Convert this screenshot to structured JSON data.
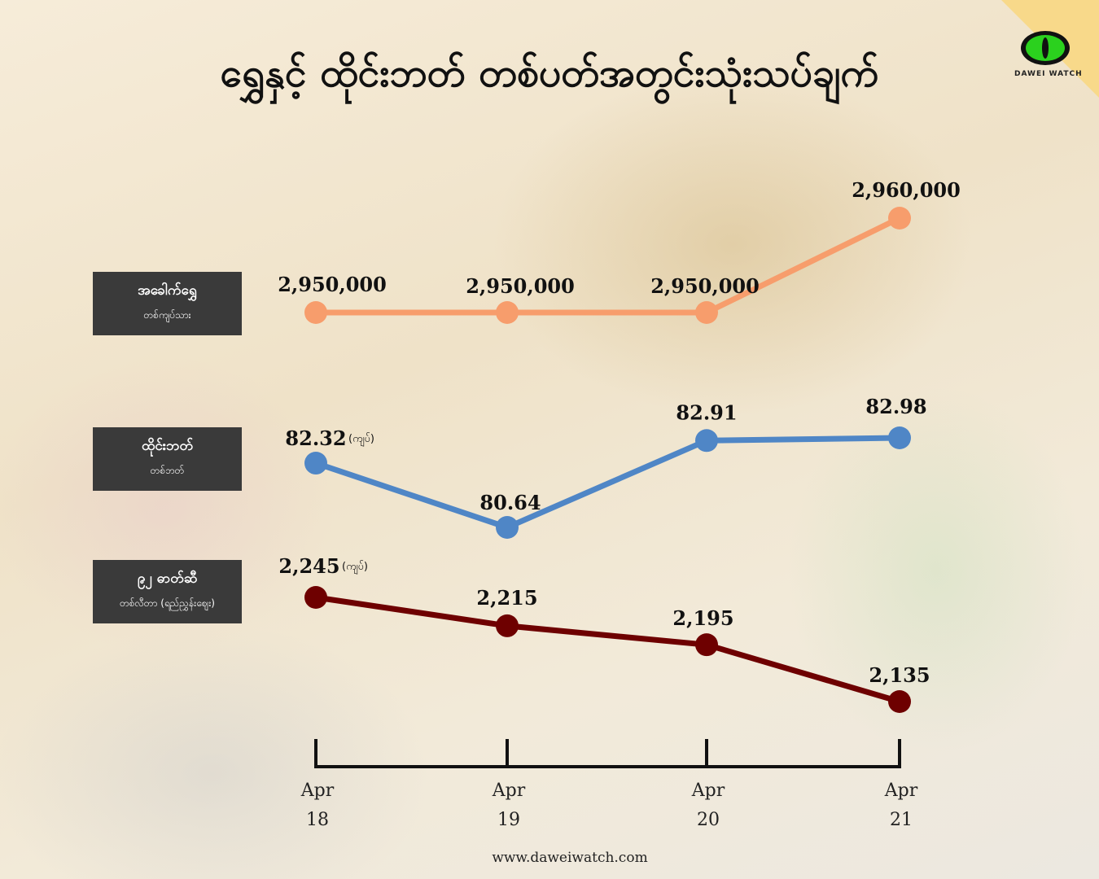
{
  "title": "ရွှေနှင့် ထိုင်းဘတ် တစ်ပတ်အတွင်းသုံးသပ်ချက်",
  "logo": {
    "text": "DAWEI WATCH",
    "icon": "eye-icon",
    "color": "#2bd11e"
  },
  "website": "www.daweiwatch.com",
  "series_labels": [
    {
      "main": "အခေါက်ရွှေ",
      "sub": "တစ်ကျပ်သား"
    },
    {
      "main": "ထိုင်းဘတ်",
      "sub": "တစ်ဘတ်"
    },
    {
      "main": "၉၂ ဓာတ်ဆီ",
      "sub": "တစ်လီတာ (ရည်ညွှန်းဈေး)"
    }
  ],
  "chart_data": {
    "type": "line",
    "x": [
      "Apr 18",
      "Apr 19",
      "Apr 20",
      "Apr 21"
    ],
    "x_ticks": [
      {
        "top": "Apr",
        "bottom": "18"
      },
      {
        "top": "Apr",
        "bottom": "19"
      },
      {
        "top": "Apr",
        "bottom": "20"
      },
      {
        "top": "Apr",
        "bottom": "21"
      }
    ],
    "series": [
      {
        "name": "အခေါက်ရွှေ",
        "color": "#f79d6c",
        "values": [
          2950000,
          2950000,
          2950000,
          2960000
        ],
        "labels": [
          "2,950,000",
          "2,950,000",
          "2,950,000",
          "2,960,000"
        ],
        "unit_note": ""
      },
      {
        "name": "ထိုင်းဘတ်",
        "color": "#4f86c6",
        "values": [
          82.32,
          80.64,
          82.91,
          82.98
        ],
        "labels": [
          "82.32",
          "80.64",
          "82.91",
          "82.98"
        ],
        "unit_note": "(ကျပ်)"
      },
      {
        "name": "၉၂ ဓာတ်ဆီ",
        "color": "#6e0000",
        "values": [
          2245,
          2215,
          2195,
          2135
        ],
        "labels": [
          "2,245",
          "2,215",
          "2,195",
          "2,135"
        ],
        "unit_note": "(ကျပ်)"
      }
    ]
  }
}
